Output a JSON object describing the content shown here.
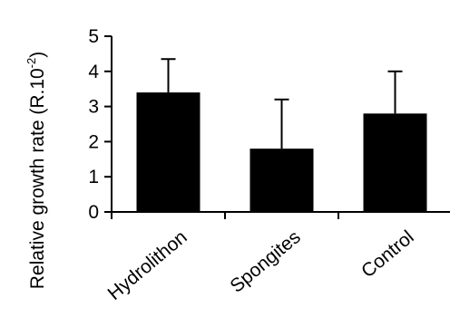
{
  "chart_data": {
    "type": "bar",
    "categories": [
      "Hydrolithon",
      "Spongites",
      "Control"
    ],
    "values": [
      3.4,
      1.8,
      2.8
    ],
    "error_upper": [
      0.95,
      1.4,
      1.2
    ],
    "ylabel": {
      "prefix": "Relative growth rate (R.10",
      "exponent": "-2",
      "suffix": ")"
    },
    "ylim": [
      0,
      5
    ],
    "yticks": [
      "0",
      "1",
      "2",
      "3",
      "4",
      "5"
    ],
    "grid": false,
    "legend": "none",
    "colors": {
      "bar": "#000000",
      "axis": "#000000"
    }
  }
}
